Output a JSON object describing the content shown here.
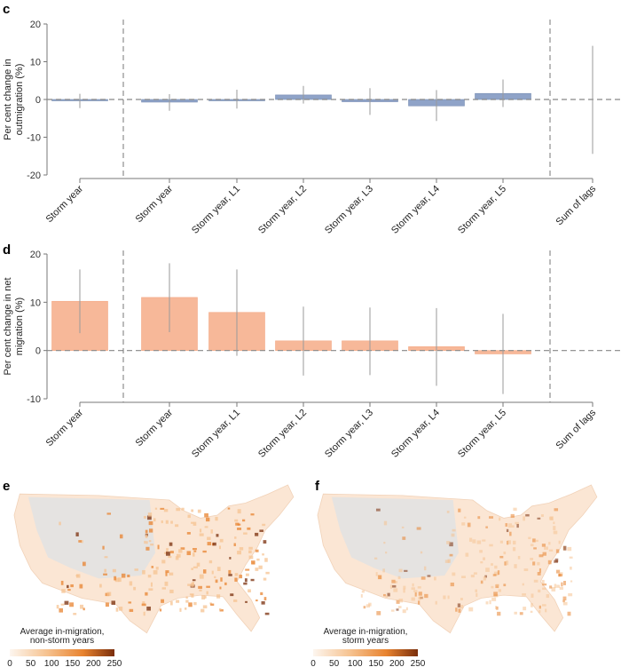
{
  "chart_data": [
    {
      "panel": "c",
      "type": "bar",
      "ylabel": [
        "Per cent change in",
        "outmigration (%)"
      ],
      "ylim": [
        -20,
        20
      ],
      "yticks": [
        20,
        10,
        0,
        -10,
        -20
      ],
      "categories": [
        "Storm year",
        "Storm year",
        "Storm year, L1",
        "Storm year, L2",
        "Storm year, L3",
        "Storm year, L4",
        "Storm year, L5",
        "Sum of lags"
      ],
      "values": [
        -0.3,
        -0.7,
        -0.1,
        1.2,
        -0.6,
        -1.7,
        1.6,
        0
      ],
      "ci_low": [
        -2.3,
        -3.0,
        -2.4,
        -1.1,
        -4.1,
        -5.7,
        -2.0,
        -14.4
      ],
      "ci_high": [
        1.5,
        1.4,
        2.6,
        3.6,
        3.0,
        2.5,
        5.3,
        14.2
      ],
      "color": "#8fa3c8"
    },
    {
      "panel": "d",
      "type": "bar",
      "ylabel": [
        "Per cent change in net",
        "migration (%)"
      ],
      "ylim": [
        -10,
        20
      ],
      "yticks": [
        20,
        10,
        0,
        -10
      ],
      "categories": [
        "Storm year",
        "Storm year",
        "Storm year, L1",
        "Storm year, L2",
        "Storm year, L3",
        "Storm year, L4",
        "Storm year, L5",
        "Sum of lags"
      ],
      "values": [
        10.2,
        11.0,
        7.9,
        2.0,
        2.0,
        0.8,
        -0.7,
        null
      ],
      "ci_low": [
        3.6,
        3.8,
        -1.1,
        -5.2,
        -5.1,
        -7.3,
        -9.0,
        null
      ],
      "ci_high": [
        16.8,
        18.1,
        16.8,
        9.1,
        8.9,
        8.8,
        7.6,
        null
      ],
      "color": "#f7b899"
    },
    {
      "panel": "e",
      "type": "heatmap",
      "legend_title": [
        "Average in-migration,",
        "non-storm years"
      ],
      "legend_ticks": [
        "0",
        "50",
        "100",
        "150",
        "200",
        "250"
      ],
      "colorscale": [
        "#fdf3ea",
        "#f6c391",
        "#e8832f",
        "#7a2e0b"
      ],
      "nodata_color": "#e2e2e2"
    },
    {
      "panel": "f",
      "type": "heatmap",
      "legend_title": [
        "Average in-migration,",
        "storm years"
      ],
      "legend_ticks": [
        "0",
        "50",
        "100",
        "150",
        "200",
        "250"
      ],
      "colorscale": [
        "#fdf3ea",
        "#f6c391",
        "#e8832f",
        "#7a2e0b"
      ],
      "nodata_color": "#e2e2e2"
    }
  ]
}
